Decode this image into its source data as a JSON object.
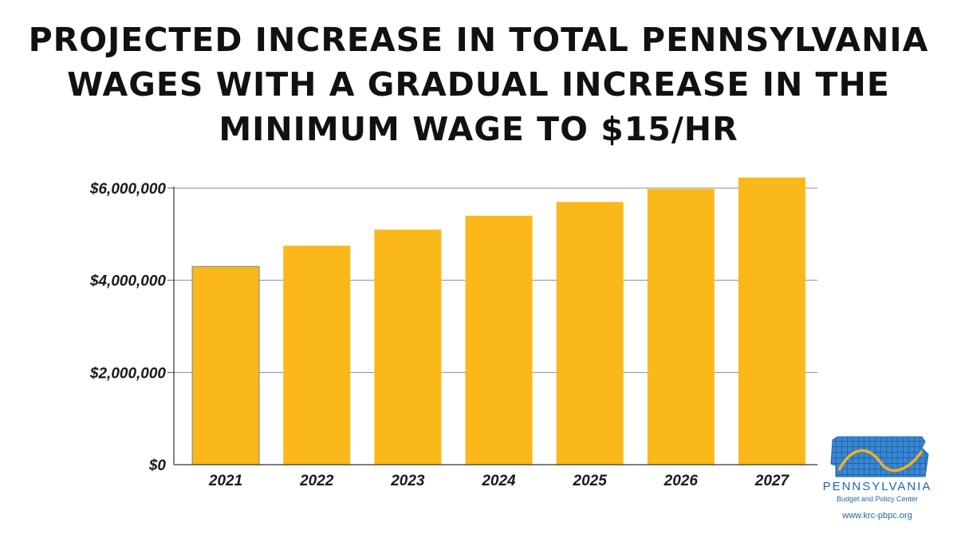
{
  "chart_data": {
    "type": "bar",
    "title_lines": [
      "PROJECTED INCREASE IN TOTAL PENNSYLVANIA",
      "WAGES WITH A GRADUAL INCREASE IN THE",
      "MINIMUM WAGE TO $15/HR"
    ],
    "categories": [
      "2021",
      "2022",
      "2023",
      "2024",
      "2025",
      "2026",
      "2027"
    ],
    "values": [
      4300000,
      4750000,
      5100000,
      5400000,
      5700000,
      5980000,
      6230000
    ],
    "ylim": [
      0,
      6000000
    ],
    "yticks": [
      0,
      2000000,
      4000000,
      6000000
    ],
    "ytick_labels": [
      "$0",
      "$2,000,000",
      "$4,000,000",
      "$6,000,000"
    ],
    "xlabel": "",
    "ylabel": "",
    "grid": true,
    "bar_color": "#fbb81a",
    "grid_color": "#8c8c8c"
  },
  "logo": {
    "name": "PENNSYLVANIA",
    "subtitle": "Budget and Policy Center",
    "url": "www.krc-pbpc.org",
    "primary_color": "#1f66b3",
    "accent_color": "#f2b01e"
  }
}
